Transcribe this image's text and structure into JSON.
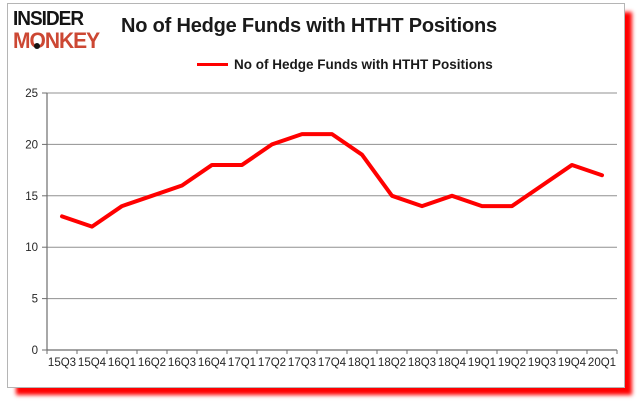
{
  "brand": {
    "line1": "INSIDER",
    "line2": "MONKEY",
    "accent_color": "#cc4733",
    "ink_color": "#141414"
  },
  "header": {
    "title": "No of Hedge Funds with HTHT Positions"
  },
  "legend": {
    "label": "No of Hedge Funds with HTHT Positions"
  },
  "colors": {
    "series_red": "#ff0000",
    "gridline_gray": "#909090",
    "axis_gray": "#6e6e6e",
    "label_ink": "#262626",
    "frame_shadow_red": "#ff0000"
  },
  "chart_data": {
    "type": "line",
    "title": "No of Hedge Funds with HTHT Positions",
    "categories": [
      "15Q3",
      "15Q4",
      "16Q1",
      "16Q2",
      "16Q3",
      "16Q4",
      "17Q1",
      "17Q2",
      "17Q3",
      "17Q4",
      "18Q1",
      "18Q2",
      "18Q3",
      "18Q4",
      "19Q1",
      "19Q2",
      "19Q3",
      "19Q4",
      "20Q1"
    ],
    "series": [
      {
        "name": "No of Hedge Funds with HTHT Positions",
        "color": "#ff0000",
        "values": [
          13,
          12,
          14,
          15,
          16,
          18,
          18,
          20,
          21,
          21,
          19,
          15,
          14,
          15,
          14,
          14,
          16,
          18,
          17
        ]
      }
    ],
    "xlabel": "",
    "ylabel": "",
    "ylim": [
      0,
      25
    ],
    "yticks": [
      0,
      5,
      10,
      15,
      20,
      25
    ],
    "grid": true,
    "legend_position": "top"
  }
}
